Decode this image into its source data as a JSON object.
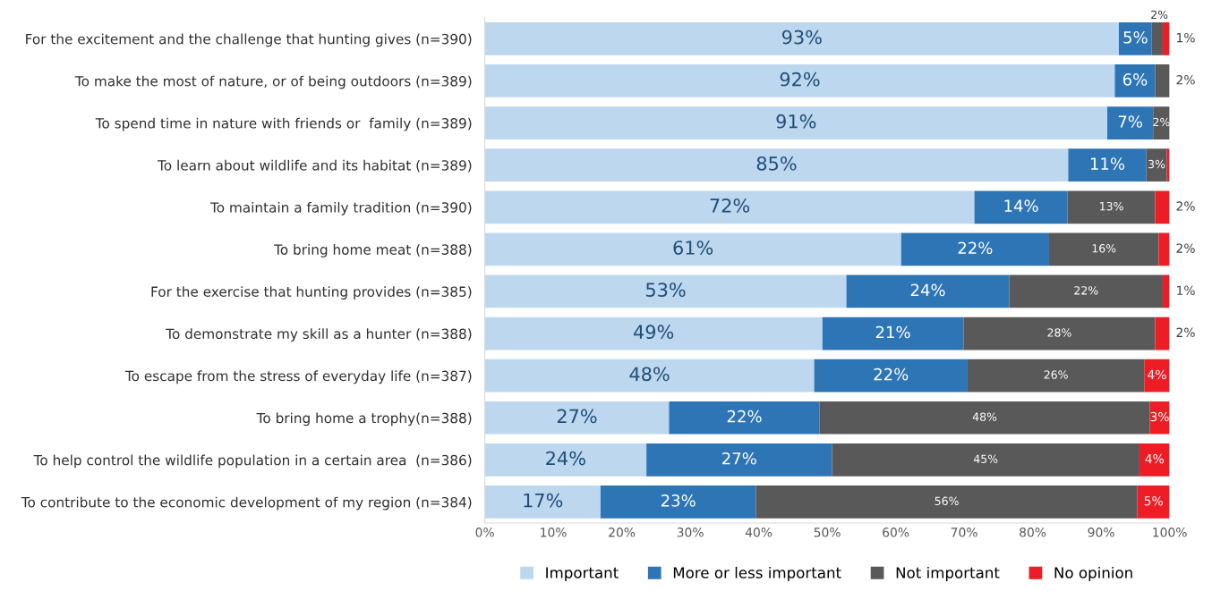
{
  "chart_data": {
    "type": "bar",
    "orientation": "horizontal",
    "stacked": true,
    "categories": [
      "For the excitement and the challenge that hunting gives (n=390)",
      "To make the most of nature, or of being outdoors (n=389)",
      "To spend time in nature with friends or  family (n=389)",
      "To learn about wildlife and its habitat (n=389)",
      "To maintain a family tradition (n=390)",
      "To bring home meat (n=388)",
      "For the exercise that hunting provides (n=385)",
      "To demonstrate my skill as a hunter (n=388)",
      "To escape from the stress of everyday life (n=387)",
      "To bring home a trophy(n=388)",
      "To help control the wildlife population in a certain area  (n=386)",
      "To contribute to the economic development of my region (n=384)"
    ],
    "series": [
      {
        "name": "Important",
        "color": "#bdd7ee",
        "values": [
          92.6,
          92.0,
          90.9,
          85.2,
          71.5,
          60.8,
          52.8,
          49.3,
          48.1,
          26.9,
          23.6,
          16.9
        ],
        "value_labels": [
          "93%",
          "92%",
          "91%",
          "85%",
          "72%",
          "61%",
          "53%",
          "49%",
          "48%",
          "27%",
          "24%",
          "17%"
        ]
      },
      {
        "name": "More or less important",
        "color": "#2e75b6",
        "values": [
          4.8,
          5.9,
          6.7,
          11.4,
          13.6,
          21.6,
          23.8,
          20.6,
          22.4,
          22.0,
          27.1,
          22.7
        ],
        "value_labels": [
          "5%",
          "6%",
          "7%",
          "11%",
          "14%",
          "22%",
          "24%",
          "21%",
          "22%",
          "22%",
          "27%",
          "23%"
        ]
      },
      {
        "name": "Not important",
        "color": "#595959",
        "values": [
          1.6,
          2.1,
          2.4,
          3.0,
          12.8,
          16.0,
          22.4,
          28.0,
          25.8,
          48.2,
          44.9,
          55.7
        ],
        "value_labels": [
          "2%",
          "2%",
          "2%",
          "3%",
          "13%",
          "16%",
          "22%",
          "28%",
          "26%",
          "48%",
          "45%",
          "56%"
        ]
      },
      {
        "name": "No opinion",
        "color": "#ee1c25",
        "values": [
          1.0,
          0,
          0,
          0.4,
          2.1,
          1.6,
          1.0,
          2.1,
          3.7,
          2.9,
          4.4,
          4.7
        ],
        "value_labels": [
          "1%",
          null,
          null,
          null,
          "2%",
          "2%",
          "1%",
          "2%",
          "4%",
          "3%",
          "4%",
          "5%"
        ]
      }
    ],
    "xlim": [
      0,
      100
    ],
    "xticks": [
      {
        "value": 0,
        "label": "0%"
      },
      {
        "value": 10,
        "label": "10%"
      },
      {
        "value": 20,
        "label": "20%"
      },
      {
        "value": 30,
        "label": "30%"
      },
      {
        "value": 40,
        "label": "40%"
      },
      {
        "value": 50,
        "label": "50%"
      },
      {
        "value": 60,
        "label": "60%"
      },
      {
        "value": 70,
        "label": "70%"
      },
      {
        "value": 80,
        "label": "80%"
      },
      {
        "value": 90,
        "label": "90%"
      },
      {
        "value": 100,
        "label": "100%"
      }
    ],
    "legend": "bottom",
    "grid": false
  }
}
